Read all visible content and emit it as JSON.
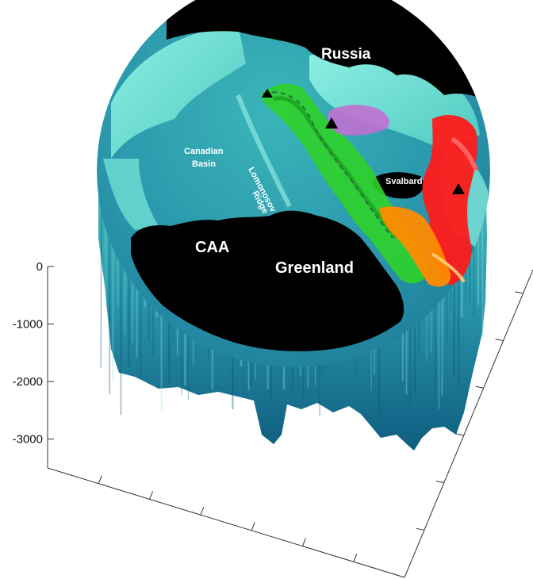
{
  "colors": {
    "ocean_surface": "#5fd3c9",
    "ocean_deep": "#1a6f8a",
    "land": "#000000",
    "water_mass_green": "#2fd12a",
    "water_mass_red": "#ff1a1a",
    "water_mass_orange": "#ff8a00",
    "water_mass_violet": "#c070d0"
  },
  "z_axis": {
    "ticks": [
      {
        "value": 0,
        "label": "0"
      },
      {
        "value": -1000,
        "label": "-1000"
      },
      {
        "value": -2000,
        "label": "-2000"
      },
      {
        "value": -3000,
        "label": "-3000"
      }
    ],
    "range": [
      -3600,
      0
    ]
  },
  "map_labels": {
    "russia": "Russia",
    "canadian_basin_line1": "Canadian",
    "canadian_basin_line2": "Basin",
    "lomonosov_line1": "Lomonosov",
    "lomonosov_line2": "Ridge",
    "svalbard": "Svalbard",
    "caa": "CAA",
    "greenland": "Greenland"
  },
  "icons": {
    "markers": "triangle-marker-icon",
    "path": "dashed-path-icon"
  }
}
